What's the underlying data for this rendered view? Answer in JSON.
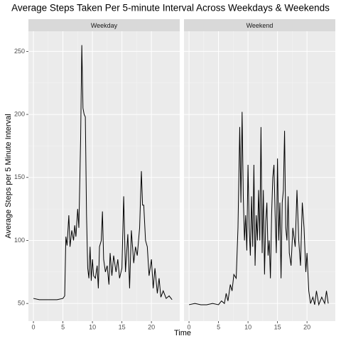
{
  "chart_data": {
    "type": "line",
    "title": "Average Steps Taken Per 5-minute Interval Across Weekdays & Weekends",
    "x_label": "Time",
    "y_label": "Average Steps per 5 Minute Interval",
    "color": "#000000",
    "grid": true,
    "xlim": [
      -0.85,
      24.8
    ],
    "ylim": [
      36,
      266
    ],
    "xticks": [
      0,
      5,
      10,
      15,
      20
    ],
    "yticks": [
      50,
      100,
      150,
      200,
      250
    ],
    "panels": [
      {
        "name": "Weekday",
        "x": [
          0,
          1,
          2,
          3,
          4,
          5,
          5.3,
          5.5,
          5.7,
          6,
          6.2,
          6.5,
          6.8,
          7,
          7.2,
          7.5,
          7.7,
          8,
          8.2,
          8.4,
          8.6,
          8.8,
          9,
          9.2,
          9.4,
          9.6,
          9.8,
          10,
          10.2,
          10.5,
          10.8,
          11,
          11.2,
          11.5,
          11.7,
          11.9,
          12.2,
          12.5,
          12.8,
          13,
          13.3,
          13.6,
          14,
          14.3,
          14.6,
          15,
          15.3,
          15.6,
          16,
          16.3,
          16.6,
          17,
          17.3,
          17.6,
          18,
          18.3,
          18.5,
          18.7,
          19,
          19.3,
          19.6,
          20,
          20.3,
          20.6,
          21,
          21.3,
          21.6,
          22,
          22.5,
          23,
          23.5
        ],
        "values": [
          54,
          53,
          53,
          53,
          53,
          54,
          56,
          103,
          96,
          120,
          95,
          108,
          100,
          112,
          103,
          125,
          110,
          180,
          255,
          205,
          200,
          198,
          120,
          78,
          70,
          95,
          68,
          85,
          72,
          70,
          80,
          62,
          95,
          100,
          123,
          85,
          75,
          80,
          65,
          90,
          72,
          88,
          75,
          85,
          70,
          78,
          135,
          75,
          105,
          62,
          108,
          82,
          95,
          88,
          110,
          155,
          128,
          128,
          100,
          95,
          72,
          85,
          62,
          78,
          58,
          70,
          55,
          60,
          54,
          56,
          53
        ]
      },
      {
        "name": "Weekend",
        "x": [
          0,
          1,
          2,
          3,
          4,
          5,
          5.5,
          6,
          6.3,
          6.6,
          7,
          7.3,
          7.6,
          8,
          8.3,
          8.6,
          8.8,
          9,
          9.2,
          9.4,
          9.6,
          9.8,
          10,
          10.2,
          10.4,
          10.6,
          10.8,
          11,
          11.2,
          11.4,
          11.6,
          11.8,
          12,
          12.2,
          12.4,
          12.6,
          12.8,
          13,
          13.2,
          13.4,
          13.6,
          13.8,
          14,
          14.2,
          14.4,
          14.6,
          14.8,
          15,
          15.2,
          15.4,
          15.6,
          15.8,
          16,
          16.2,
          16.4,
          16.6,
          16.8,
          17,
          17.3,
          17.6,
          18,
          18.3,
          18.6,
          18.9,
          19.2,
          19.5,
          19.8,
          20,
          20.3,
          20.6,
          21,
          21.3,
          21.6,
          22,
          22.5,
          23,
          23.3,
          23.6
        ],
        "values": [
          49,
          50,
          49,
          49,
          50,
          49,
          52,
          50,
          58,
          52,
          65,
          60,
          73,
          70,
          110,
          190,
          130,
          202,
          135,
          100,
          120,
          92,
          160,
          110,
          88,
          135,
          95,
          160,
          80,
          120,
          100,
          140,
          100,
          190,
          90,
          140,
          73,
          115,
          130,
          88,
          100,
          70,
          120,
          150,
          160,
          120,
          90,
          165,
          100,
          130,
          70,
          130,
          140,
          187,
          110,
          100,
          135,
          90,
          80,
          110,
          95,
          140,
          100,
          80,
          130,
          110,
          75,
          90,
          60,
          50,
          55,
          49,
          60,
          49,
          55,
          50,
          60,
          50
        ]
      }
    ]
  }
}
